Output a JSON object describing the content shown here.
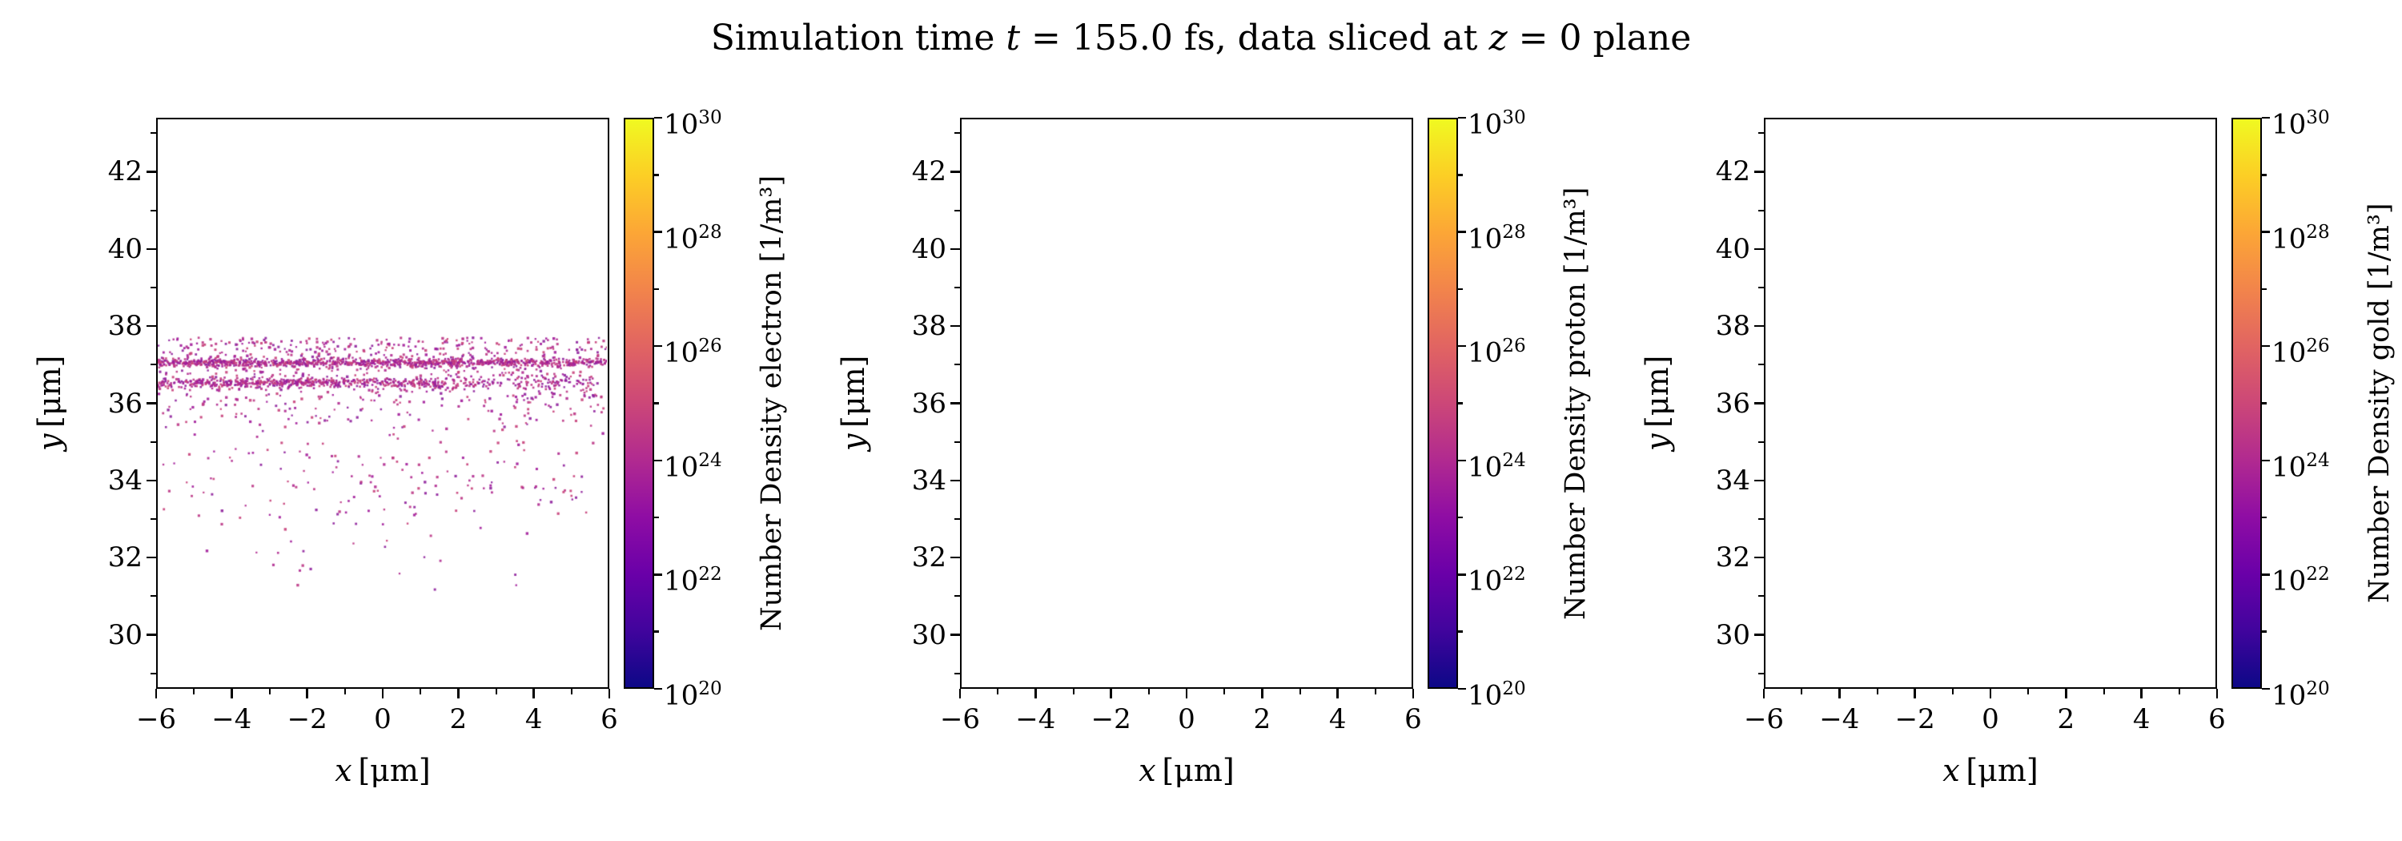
{
  "title": {
    "pre": "Simulation time ",
    "t_var": "t",
    "mid": " = 155.0 fs, data sliced at ",
    "z_var": "z",
    "post": " = 0 plane"
  },
  "axes": {
    "x_label_var": "x",
    "x_label_unit": "[μm]",
    "y_label_var": "y",
    "y_label_unit": "[μm]",
    "x_ticks": [
      -6,
      -4,
      -2,
      0,
      2,
      4,
      6
    ],
    "y_ticks": [
      30,
      32,
      34,
      36,
      38,
      40,
      42
    ]
  },
  "colormap": {
    "name": "plasma",
    "stops": [
      "#0d0887",
      "#41049d",
      "#6a00a8",
      "#8f0da4",
      "#b12a90",
      "#cc4778",
      "#e16462",
      "#f2844b",
      "#fca636",
      "#fcce25",
      "#f0f921"
    ]
  },
  "panels": [
    {
      "species": "electron",
      "colorbar_label": "Number Density electron [1/m³]"
    },
    {
      "species": "proton",
      "colorbar_label": "Number Density proton [1/m³]"
    },
    {
      "species": "gold",
      "colorbar_label": "Number Density gold [1/m³]"
    }
  ],
  "chart_data": [
    {
      "type": "scatter",
      "species": "electron",
      "colorbar_label": "Number Density electron [1/m³]",
      "x_range": [
        -6,
        6
      ],
      "y_range": [
        28.6,
        43.4
      ],
      "x_ticks": [
        -6,
        -4,
        -2,
        0,
        2,
        4,
        6
      ],
      "y_ticks": [
        30,
        32,
        34,
        36,
        38,
        40,
        42
      ],
      "colorbar": {
        "scale": "log",
        "min_exp": 20,
        "max_exp": 30,
        "tick_exps": [
          20,
          22,
          24,
          26,
          28,
          30
        ]
      },
      "features": {
        "bands": [
          {
            "y": 37.05,
            "sigma": 0.05,
            "x_min": -6.0,
            "x_max": 6.0,
            "count": 950
          },
          {
            "y": 36.52,
            "sigma": 0.06,
            "x_min": -6.0,
            "x_max": 1.6,
            "count": 520
          },
          {
            "y": 36.52,
            "sigma": 0.1,
            "x_min": 1.6,
            "x_max": 5.7,
            "count": 140
          }
        ],
        "clouds": [
          {
            "x_min": -6.0,
            "x_max": 6.0,
            "y_min": 34.8,
            "y_max": 37.7,
            "count": 820,
            "bias": "top"
          },
          {
            "x_min": -6.0,
            "x_max": 5.5,
            "y_min": 33.0,
            "y_max": 34.8,
            "count": 140,
            "bias": "none"
          },
          {
            "x_min": -5.5,
            "x_max": 4.5,
            "y_min": 31.0,
            "y_max": 33.0,
            "count": 28,
            "bias": "none"
          }
        ],
        "point_colors": [
          "#a21c9a",
          "#b02a90",
          "#bd3786",
          "#c8417b",
          "#8f219c"
        ]
      }
    },
    {
      "type": "scatter",
      "species": "proton",
      "colorbar_label": "Number Density proton [1/m³]",
      "x_range": [
        -6,
        6
      ],
      "y_range": [
        28.6,
        43.4
      ],
      "x_ticks": [
        -6,
        -4,
        -2,
        0,
        2,
        4,
        6
      ],
      "y_ticks": [
        30,
        32,
        34,
        36,
        38,
        40,
        42
      ],
      "colorbar": {
        "scale": "log",
        "min_exp": 20,
        "max_exp": 30,
        "tick_exps": [
          20,
          22,
          24,
          26,
          28,
          30
        ]
      },
      "features": null
    },
    {
      "type": "scatter",
      "species": "gold",
      "colorbar_label": "Number Density gold [1/m³]",
      "x_range": [
        -6,
        6
      ],
      "y_range": [
        28.6,
        43.4
      ],
      "x_ticks": [
        -6,
        -4,
        -2,
        0,
        2,
        4,
        6
      ],
      "y_ticks": [
        30,
        32,
        34,
        36,
        38,
        40,
        42
      ],
      "colorbar": {
        "scale": "log",
        "min_exp": 20,
        "max_exp": 30,
        "tick_exps": [
          20,
          22,
          24,
          26,
          28,
          30
        ]
      },
      "features": null
    }
  ]
}
